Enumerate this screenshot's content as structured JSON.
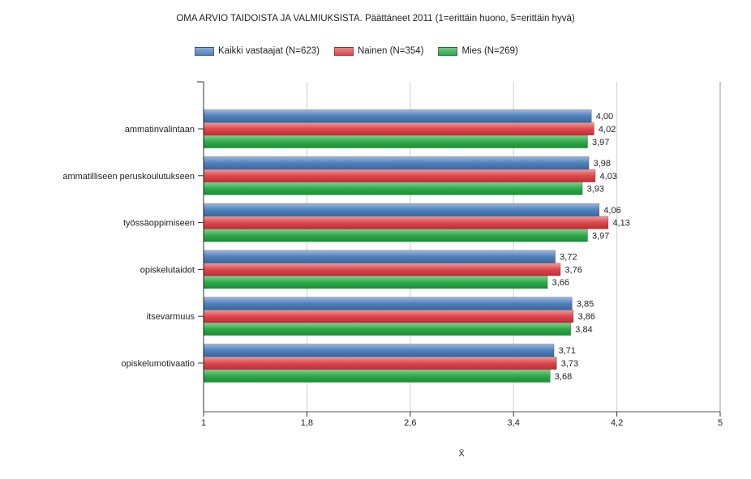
{
  "chart_data": {
    "type": "bar",
    "orientation": "horizontal",
    "title": "OMA ARVIO TAIDOISTA JA VALMIUKSISTA. Päättäneet 2011 (1=erittäin huono, 5=erittäin hyvä)",
    "xlabel": "X̄",
    "xlim": [
      1,
      5
    ],
    "xticks": [
      "1",
      "1,8",
      "2,6",
      "3,4",
      "4,2",
      "5"
    ],
    "xtick_values": [
      1,
      1.8,
      2.6,
      3.4,
      4.2,
      5
    ],
    "legend_position": "top",
    "grid": true,
    "categories": [
      "ammatinvalintaan",
      "ammatilliseen peruskoulutukseen",
      "työssäoppimiseen",
      "opiskelutaidot",
      "itsevarmuus",
      "opiskelumotivaatio"
    ],
    "series": [
      {
        "name": "Kaikki vastaajat (N=623)",
        "color": "#4f81bd",
        "values": [
          4.0,
          3.98,
          4.06,
          3.72,
          3.85,
          3.71
        ],
        "labels": [
          "4,00",
          "3,98",
          "4,06",
          "3,72",
          "3,85",
          "3,71"
        ]
      },
      {
        "name": "Nainen (N=354)",
        "color": "#e0474c",
        "values": [
          4.02,
          4.03,
          4.13,
          3.76,
          3.86,
          3.73
        ],
        "labels": [
          "4,02",
          "4,03",
          "4,13",
          "3,76",
          "3,86",
          "3,73"
        ]
      },
      {
        "name": "Mies (N=269)",
        "color": "#2eaa4a",
        "values": [
          3.97,
          3.93,
          3.97,
          3.66,
          3.84,
          3.68
        ],
        "labels": [
          "3,97",
          "3,93",
          "3,97",
          "3,66",
          "3,84",
          "3,68"
        ]
      }
    ]
  }
}
